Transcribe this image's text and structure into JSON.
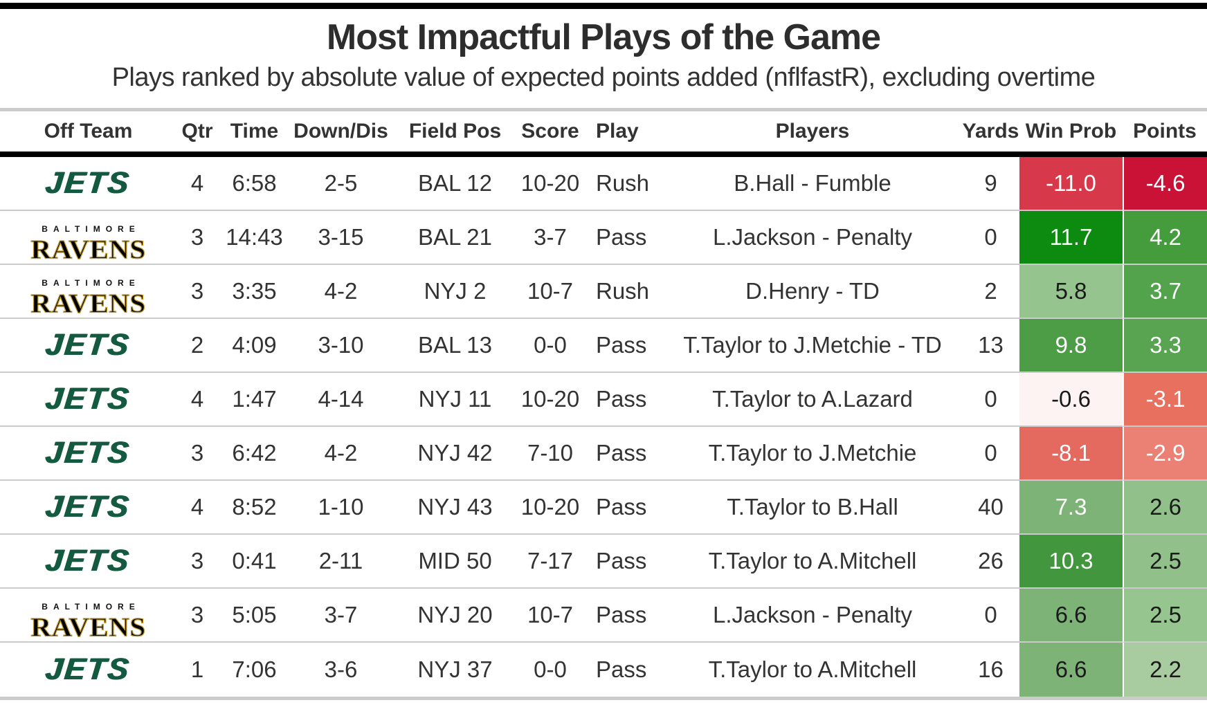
{
  "colors": {
    "top_bar": "#000000",
    "header_rule": "#000000",
    "divider_gray": "#cccccc",
    "row_separator": "#cbcbcb",
    "text_dark": "#333333",
    "jets_green": "#135a40",
    "ravens_black": "#000000",
    "ravens_gold": "#bf9b30"
  },
  "chart_data": {
    "type": "table",
    "title": "Most Impactful Plays of the Game",
    "subtitle": "Plays ranked by absolute value of expected points added (nflfastR), excluding overtime",
    "columns": [
      "Off Team",
      "Qtr",
      "Time",
      "Down/Dis",
      "Field Pos",
      "Score",
      "Play",
      "Players",
      "Yards",
      "Win Prob",
      "Points"
    ],
    "rows": [
      {
        "team": "jets",
        "logo": {
          "name": "JETS"
        },
        "qtr": "4",
        "time": "6:58",
        "down_dis": "2-5",
        "field_pos": "BAL 12",
        "score": "10-20",
        "play": "Rush",
        "players": "B.Hall - Fumble",
        "yards": "9",
        "win_prob": {
          "value": "-11.0",
          "bg": "#d8394a",
          "fg": "#ffffff"
        },
        "points": {
          "value": "-4.6",
          "bg": "#ca1237",
          "fg": "#ffffff"
        }
      },
      {
        "team": "ravens",
        "logo": {
          "city": "BALTIMORE",
          "name": "RAVENS"
        },
        "qtr": "3",
        "time": "14:43",
        "down_dis": "3-15",
        "field_pos": "BAL 21",
        "score": "3-7",
        "play": "Pass",
        "players": "L.Jackson - Penalty",
        "yards": "0",
        "win_prob": {
          "value": "11.7",
          "bg": "#0d8a10",
          "fg": "#ffffff"
        },
        "points": {
          "value": "4.2",
          "bg": "#459c3c",
          "fg": "#ffffff"
        }
      },
      {
        "team": "ravens",
        "logo": {
          "city": "BALTIMORE",
          "name": "RAVENS"
        },
        "qtr": "3",
        "time": "3:35",
        "down_dis": "4-2",
        "field_pos": "NYJ 2",
        "score": "10-7",
        "play": "Rush",
        "players": "D.Henry - TD",
        "yards": "2",
        "win_prob": {
          "value": "5.8",
          "bg": "#95c48e",
          "fg": "#1a1a1a"
        },
        "points": {
          "value": "3.7",
          "bg": "#53a24c",
          "fg": "#ffffff"
        }
      },
      {
        "team": "jets",
        "logo": {
          "name": "JETS"
        },
        "qtr": "2",
        "time": "4:09",
        "down_dis": "3-10",
        "field_pos": "BAL 13",
        "score": "0-0",
        "play": "Pass",
        "players": "T.Taylor to J.Metchie - TD",
        "yards": "13",
        "win_prob": {
          "value": "9.8",
          "bg": "#4d9c46",
          "fg": "#ffffff"
        },
        "points": {
          "value": "3.3",
          "bg": "#58a451",
          "fg": "#ffffff"
        }
      },
      {
        "team": "jets",
        "logo": {
          "name": "JETS"
        },
        "qtr": "4",
        "time": "1:47",
        "down_dis": "4-14",
        "field_pos": "NYJ 11",
        "score": "10-20",
        "play": "Pass",
        "players": "T.Taylor to A.Lazard",
        "yards": "0",
        "win_prob": {
          "value": "-0.6",
          "bg": "#fdf3f2",
          "fg": "#1a1a1a"
        },
        "points": {
          "value": "-3.1",
          "bg": "#e7705f",
          "fg": "#ffffff"
        }
      },
      {
        "team": "jets",
        "logo": {
          "name": "JETS"
        },
        "qtr": "3",
        "time": "6:42",
        "down_dis": "4-2",
        "field_pos": "NYJ 42",
        "score": "7-10",
        "play": "Pass",
        "players": "T.Taylor to J.Metchie",
        "yards": "0",
        "win_prob": {
          "value": "-8.1",
          "bg": "#e4695e",
          "fg": "#ffffff"
        },
        "points": {
          "value": "-2.9",
          "bg": "#eb8175",
          "fg": "#ffffff"
        }
      },
      {
        "team": "jets",
        "logo": {
          "name": "JETS"
        },
        "qtr": "4",
        "time": "8:52",
        "down_dis": "1-10",
        "field_pos": "NYJ 43",
        "score": "10-20",
        "play": "Pass",
        "players": "T.Taylor to B.Hall",
        "yards": "40",
        "win_prob": {
          "value": "7.3",
          "bg": "#7db377",
          "fg": "#ffffff"
        },
        "points": {
          "value": "2.6",
          "bg": "#91c08a",
          "fg": "#1a1a1a"
        }
      },
      {
        "team": "jets",
        "logo": {
          "name": "JETS"
        },
        "qtr": "3",
        "time": "0:41",
        "down_dis": "2-11",
        "field_pos": "MID 50",
        "score": "7-17",
        "play": "Pass",
        "players": "T.Taylor to A.Mitchell",
        "yards": "26",
        "win_prob": {
          "value": "10.3",
          "bg": "#42963d",
          "fg": "#ffffff"
        },
        "points": {
          "value": "2.5",
          "bg": "#91c08a",
          "fg": "#1a1a1a"
        }
      },
      {
        "team": "ravens",
        "logo": {
          "city": "BALTIMORE",
          "name": "RAVENS"
        },
        "qtr": "3",
        "time": "5:05",
        "down_dis": "3-7",
        "field_pos": "NYJ 20",
        "score": "10-7",
        "play": "Pass",
        "players": "L.Jackson - Penalty",
        "yards": "0",
        "win_prob": {
          "value": "6.6",
          "bg": "#7db377",
          "fg": "#1a1a1a"
        },
        "points": {
          "value": "2.5",
          "bg": "#97c590",
          "fg": "#1a1a1a"
        }
      },
      {
        "team": "jets",
        "logo": {
          "name": "JETS"
        },
        "qtr": "1",
        "time": "7:06",
        "down_dis": "3-6",
        "field_pos": "NYJ 37",
        "score": "0-0",
        "play": "Pass",
        "players": "T.Taylor to A.Mitchell",
        "yards": "16",
        "win_prob": {
          "value": "6.6",
          "bg": "#7db377",
          "fg": "#1a1a1a"
        },
        "points": {
          "value": "2.2",
          "bg": "#a8cc9f",
          "fg": "#1a1a1a"
        }
      }
    ]
  }
}
